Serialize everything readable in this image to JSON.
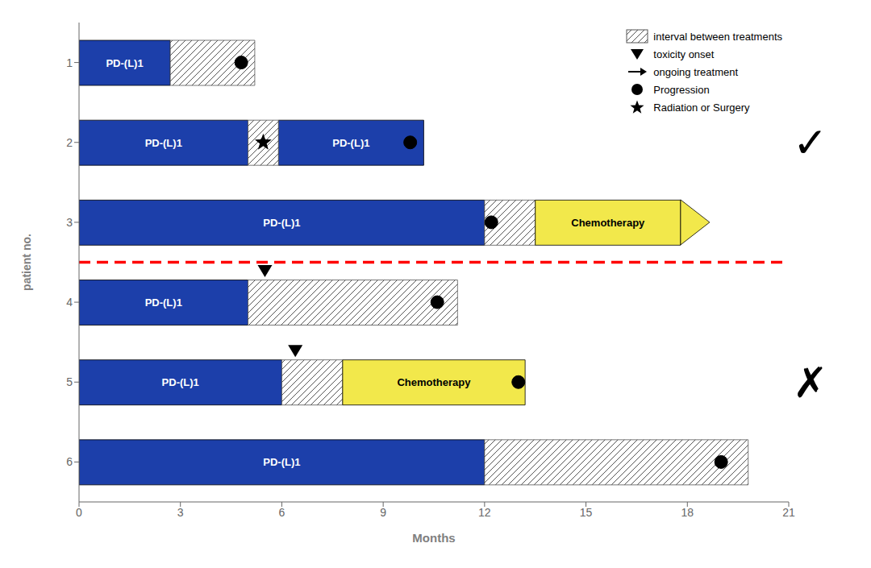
{
  "chart_data": {
    "type": "bar",
    "orientation": "horizontal",
    "xlabel": "Months",
    "ylabel": "patient no.",
    "categories": [
      "1",
      "2",
      "3",
      "4",
      "5",
      "6"
    ],
    "xlim": [
      0,
      21
    ],
    "xticks": [
      0,
      3,
      6,
      9,
      12,
      15,
      18,
      21
    ],
    "legend": "upper right",
    "series": [
      {
        "type": "bar",
        "label": "PD-(L)1",
        "color": "#1c3faa",
        "values": [
          [
            [
              0,
              2.7
            ]
          ],
          [
            [
              0,
              5.0
            ],
            [
              5.9,
              10.2
            ]
          ],
          [
            [
              0,
              12.0
            ]
          ],
          [
            [
              0,
              5.0
            ]
          ],
          [
            [
              0,
              6.0
            ]
          ],
          [
            [
              0,
              12.0
            ]
          ]
        ]
      },
      {
        "type": "bar",
        "name": "interval between treatments",
        "values": [
          [
            [
              2.7,
              5.2
            ]
          ],
          [
            [
              5.0,
              5.9
            ]
          ],
          [
            [
              12.0,
              13.5
            ]
          ],
          [
            [
              5.0,
              11.2
            ]
          ],
          [
            [
              6.0,
              7.8
            ]
          ],
          [
            [
              12.0,
              19.8
            ]
          ]
        ]
      },
      {
        "type": "bar",
        "label": "Chemotherapy",
        "color": "#f2e84b",
        "values": [
          [],
          [],
          [
            [
              13.5,
              17.8
            ]
          ],
          [],
          [
            [
              7.8,
              13.2
            ]
          ],
          []
        ]
      },
      {
        "type": "scatter",
        "name": "toxicity onset",
        "marker": "triangle_down",
        "values": [
          [],
          [],
          [],
          [
            5.5
          ],
          [
            6.4
          ],
          []
        ]
      },
      {
        "type": "scatter",
        "name": "ongoing treatment",
        "marker": "arrow",
        "color": "#f2e84b",
        "values": [
          [],
          [],
          [
            17.8
          ],
          [],
          [],
          []
        ]
      },
      {
        "type": "scatter",
        "name": "Progression",
        "marker": "circle",
        "values": [
          [
            4.8
          ],
          [
            9.8
          ],
          [
            12.2
          ],
          [
            10.6
          ],
          [
            13.0
          ],
          [
            19.0
          ]
        ]
      },
      {
        "type": "scatter",
        "name": "Radiation or Surgery",
        "marker": "star",
        "values": [
          [],
          [
            5.45
          ],
          [],
          [],
          [],
          []
        ]
      }
    ],
    "groups": [
      {
        "categories": [
          "1",
          "2",
          "3"
        ],
        "label": "✓"
      },
      {
        "categories": [
          "4",
          "5",
          "6"
        ],
        "label": "✗"
      }
    ],
    "group_divider": {
      "color": "red",
      "line_style": "dashed"
    }
  }
}
